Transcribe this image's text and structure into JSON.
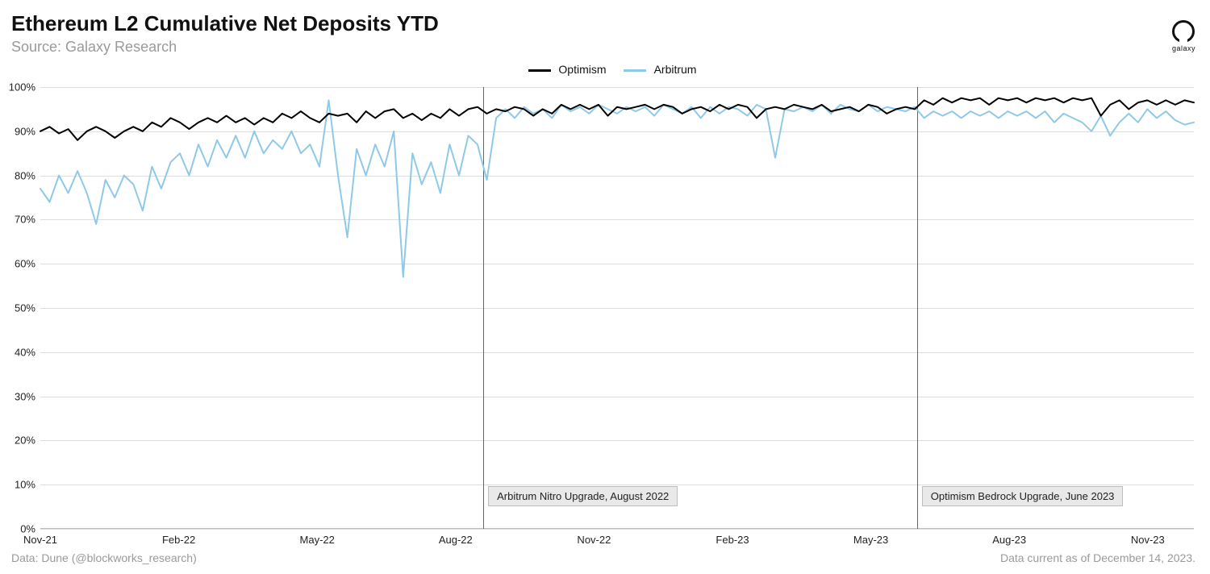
{
  "title": "Ethereum L2 Cumulative Net Deposits YTD",
  "subtitle": "Source: Galaxy Research",
  "logo_text": "galaxy",
  "footer_left": "Data: Dune (@blockworks_research)",
  "footer_right": "Data current as of December 14, 2023.",
  "chart": {
    "type": "line",
    "background_color": "#ffffff",
    "grid_color": "#dddddd",
    "axis_color": "#bdbdbd",
    "title_fontsize": 26,
    "subtitle_fontsize": 18,
    "label_fontsize": 13,
    "line_width": 2,
    "ylim": [
      0,
      100
    ],
    "ytick_step": 10,
    "ytick_suffix": "%",
    "x_range": [
      0,
      25
    ],
    "x_ticks": [
      {
        "pos": 0,
        "label": "Nov-21"
      },
      {
        "pos": 3,
        "label": "Feb-22"
      },
      {
        "pos": 6,
        "label": "May-22"
      },
      {
        "pos": 9,
        "label": "Aug-22"
      },
      {
        "pos": 12,
        "label": "Nov-22"
      },
      {
        "pos": 15,
        "label": "Feb-23"
      },
      {
        "pos": 18,
        "label": "May-23"
      },
      {
        "pos": 21,
        "label": "Aug-23"
      },
      {
        "pos": 24,
        "label": "Nov-23"
      }
    ],
    "legend": [
      {
        "label": "Optimism",
        "color": "#000000"
      },
      {
        "label": "Arbitrum",
        "color": "#8fc9e8"
      }
    ],
    "annotations": [
      {
        "x": 9.6,
        "label": "Arbitrum Nitro Upgrade, August 2022",
        "line_color": "#666666"
      },
      {
        "x": 19.0,
        "label": "Optimism Bedrock Upgrade, June 2023",
        "line_color": "#666666"
      }
    ],
    "series": [
      {
        "name": "Optimism",
        "color": "#000000",
        "y": [
          90,
          91,
          89.5,
          90.5,
          88,
          90,
          91,
          90,
          88.5,
          90,
          91,
          90,
          92,
          91,
          93,
          92,
          90.5,
          92,
          93,
          92,
          93.5,
          92,
          93,
          91.5,
          93,
          92,
          94,
          93,
          94.5,
          93,
          92,
          94,
          93.5,
          94,
          92,
          94.5,
          93,
          94.5,
          95,
          93,
          94,
          92.5,
          94,
          93,
          95,
          93.5,
          95,
          95.5,
          94,
          95,
          94.5,
          95.5,
          95,
          93.5,
          95,
          94,
          96,
          95,
          96,
          95,
          96,
          93.5,
          95.5,
          95,
          95.5,
          96,
          95,
          96,
          95.5,
          94,
          95,
          95.5,
          94.5,
          96,
          95,
          96,
          95.5,
          93,
          95,
          95.5,
          95,
          96,
          95.5,
          95,
          96,
          94.5,
          95,
          95.5,
          94.5,
          96,
          95.5,
          94,
          95,
          95.5,
          95,
          97,
          96,
          97.5,
          96.5,
          97.5,
          97,
          97.5,
          96,
          97.5,
          97,
          97.5,
          96.5,
          97.5,
          97,
          97.5,
          96.5,
          97.5,
          97,
          97.5,
          93.5,
          96,
          97,
          95,
          96.5,
          97,
          96,
          97,
          96,
          97,
          96.5
        ]
      },
      {
        "name": "Arbitrum",
        "color": "#8fc9e8",
        "y": [
          77,
          74,
          80,
          76,
          81,
          76,
          69,
          79,
          75,
          80,
          78,
          72,
          82,
          77,
          83,
          85,
          80,
          87,
          82,
          88,
          84,
          89,
          84,
          90,
          85,
          88,
          86,
          90,
          85,
          87,
          82,
          97,
          80,
          66,
          86,
          80,
          87,
          82,
          90,
          57,
          85,
          78,
          83,
          76,
          87,
          80,
          89,
          87,
          79,
          93,
          95,
          93,
          95.5,
          94,
          95,
          93,
          96,
          94.5,
          95.5,
          94,
          96,
          95,
          94,
          95.5,
          94.5,
          95.5,
          93.5,
          96,
          95,
          94,
          95.5,
          93,
          95.5,
          94,
          95.5,
          95,
          93.5,
          96,
          95,
          84,
          95,
          94.5,
          95.5,
          94.5,
          96,
          94,
          96,
          95,
          94.5,
          96,
          94.5,
          95.5,
          95,
          94.5,
          95.5,
          93,
          94.5,
          93.5,
          94.5,
          93,
          94.5,
          93.5,
          94.5,
          93,
          94.5,
          93.5,
          94.5,
          93,
          94.5,
          92,
          94,
          93,
          92,
          90,
          93.5,
          89,
          92,
          94,
          92,
          95,
          93,
          94.5,
          92.5,
          91.5,
          92
        ]
      }
    ]
  }
}
